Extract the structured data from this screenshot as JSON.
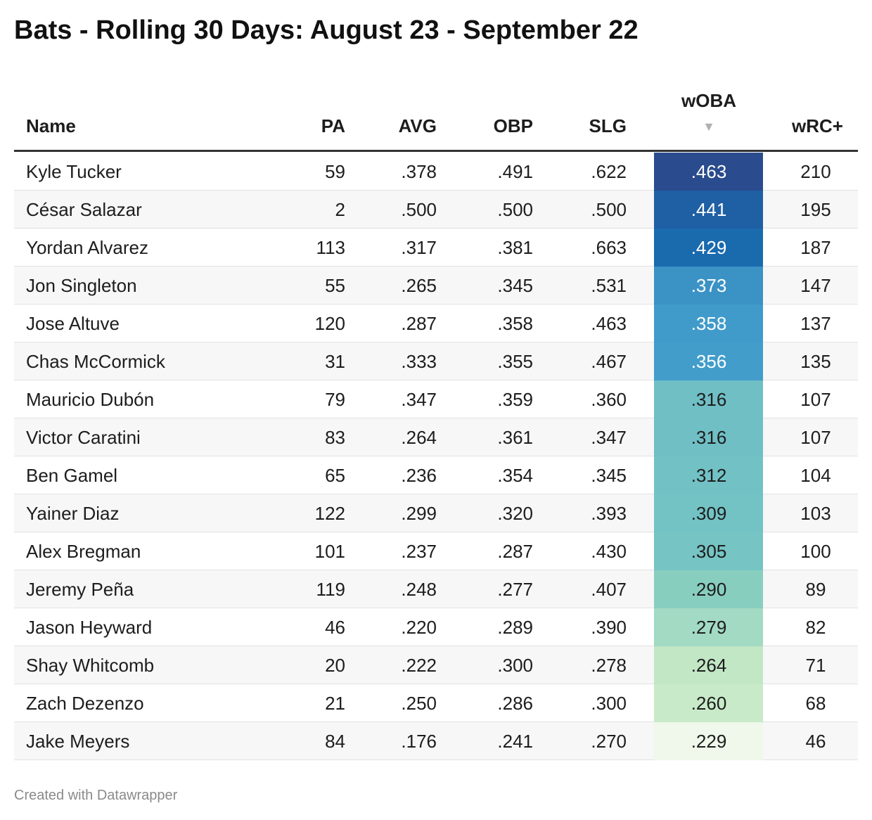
{
  "header": {
    "title": "Bats - Rolling 30 Days: August 23 - September 22"
  },
  "table": {
    "columns": [
      "Name",
      "PA",
      "AVG",
      "OBP",
      "SLG",
      "wOBA",
      "wRC+"
    ],
    "sorted_column": 5,
    "rows": [
      [
        "Kyle Tucker",
        "59",
        ".378",
        ".491",
        ".622",
        ".463",
        "210"
      ],
      [
        "César Salazar",
        "2",
        ".500",
        ".500",
        ".500",
        ".441",
        "195"
      ],
      [
        "Yordan Alvarez",
        "113",
        ".317",
        ".381",
        ".663",
        ".429",
        "187"
      ],
      [
        "Jon Singleton",
        "55",
        ".265",
        ".345",
        ".531",
        ".373",
        "147"
      ],
      [
        "Jose Altuve",
        "120",
        ".287",
        ".358",
        ".463",
        ".358",
        "137"
      ],
      [
        "Chas McCormick",
        "31",
        ".333",
        ".355",
        ".467",
        ".356",
        "135"
      ],
      [
        "Mauricio Dubón",
        "79",
        ".347",
        ".359",
        ".360",
        ".316",
        "107"
      ],
      [
        "Victor Caratini",
        "83",
        ".264",
        ".361",
        ".347",
        ".316",
        "107"
      ],
      [
        "Ben Gamel",
        "65",
        ".236",
        ".354",
        ".345",
        ".312",
        "104"
      ],
      [
        "Yainer Diaz",
        "122",
        ".299",
        ".320",
        ".393",
        ".309",
        "103"
      ],
      [
        "Alex Bregman",
        "101",
        ".237",
        ".287",
        ".430",
        ".305",
        "100"
      ],
      [
        "Jeremy Peña",
        "119",
        ".248",
        ".277",
        ".407",
        ".290",
        "89"
      ],
      [
        "Jason Heyward",
        "46",
        ".220",
        ".289",
        ".390",
        ".279",
        "82"
      ],
      [
        "Shay Whitcomb",
        "20",
        ".222",
        ".300",
        ".278",
        ".264",
        "71"
      ],
      [
        "Zach Dezenzo",
        "21",
        ".250",
        ".286",
        ".300",
        ".260",
        "68"
      ],
      [
        "Jake Meyers",
        "84",
        ".176",
        ".241",
        ".270",
        ".229",
        "46"
      ]
    ],
    "highlight_colors": [
      "#2a4b8d",
      "#1f5fa4",
      "#1a6aae",
      "#3b92c4",
      "#409bca",
      "#429dcb",
      "#6fbfc5",
      "#6fbfc5",
      "#72c1c5",
      "#73c3c5",
      "#76c4c4",
      "#88cebf",
      "#a2dac3",
      "#c1e7c5",
      "#c8eac8",
      "#eff8eb"
    ]
  },
  "footer": "Created with Datawrapper"
}
